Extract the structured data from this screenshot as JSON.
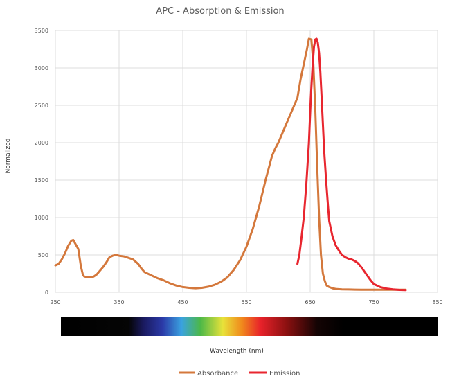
{
  "chart_data": {
    "type": "line",
    "title": "APC - Absorption & Emission",
    "xlabel": "Wavelength (nm)",
    "ylabel": "Normalized",
    "xlim": [
      250,
      850
    ],
    "ylim": [
      0,
      3500
    ],
    "x_ticks": [
      250,
      350,
      450,
      550,
      650,
      750,
      850
    ],
    "y_ticks": [
      0,
      500,
      1000,
      1500,
      2000,
      2500,
      3000,
      3500
    ],
    "grid": true,
    "legend_position": "bottom",
    "series": [
      {
        "name": "Absorbance",
        "color": "#d4783c",
        "x": [
          250,
          255,
          260,
          265,
          270,
          275,
          278,
          282,
          286,
          290,
          293,
          295,
          298,
          300,
          305,
          310,
          315,
          320,
          325,
          330,
          335,
          340,
          345,
          350,
          358,
          365,
          372,
          380,
          385,
          390,
          400,
          410,
          420,
          430,
          440,
          450,
          460,
          470,
          480,
          490,
          500,
          510,
          520,
          530,
          540,
          550,
          560,
          570,
          580,
          590,
          595,
          600,
          610,
          620,
          630,
          635,
          640,
          645,
          648,
          652,
          655,
          658,
          661,
          664,
          667,
          670,
          673,
          676,
          680,
          685,
          690,
          700,
          710,
          720,
          730,
          740,
          750,
          760,
          770,
          780,
          790,
          800
        ],
        "values": [
          360,
          380,
          440,
          520,
          620,
          690,
          700,
          640,
          580,
          350,
          240,
          215,
          205,
          200,
          200,
          210,
          240,
          290,
          340,
          400,
          470,
          490,
          500,
          490,
          480,
          460,
          440,
          380,
          320,
          270,
          230,
          190,
          160,
          120,
          90,
          70,
          60,
          55,
          60,
          75,
          100,
          140,
          200,
          300,
          430,
          610,
          850,
          1150,
          1500,
          1820,
          1920,
          2000,
          2200,
          2400,
          2600,
          2850,
          3050,
          3250,
          3390,
          3380,
          3050,
          2450,
          1700,
          1000,
          500,
          250,
          150,
          90,
          70,
          55,
          45,
          40,
          38,
          36,
          35,
          35,
          35,
          35,
          35,
          35,
          35,
          35
        ]
      },
      {
        "name": "Emission",
        "color": "#e8262f",
        "x": [
          630,
          633,
          636,
          640,
          644,
          648,
          651,
          654,
          656,
          658,
          660,
          662,
          664,
          666,
          668,
          670,
          672,
          675,
          678,
          680,
          685,
          690,
          695,
          700,
          705,
          710,
          715,
          720,
          725,
          730,
          735,
          740,
          745,
          750,
          760,
          770,
          780,
          790,
          800
        ],
        "values": [
          380,
          500,
          700,
          1000,
          1450,
          2000,
          2600,
          3050,
          3280,
          3380,
          3390,
          3340,
          3200,
          2950,
          2600,
          2250,
          1900,
          1500,
          1150,
          950,
          750,
          630,
          560,
          500,
          470,
          450,
          440,
          420,
          390,
          340,
          280,
          220,
          160,
          110,
          70,
          50,
          40,
          32,
          30
        ]
      }
    ],
    "spectrum_bar": {
      "stops": [
        {
          "offset": 0,
          "color": "#000000"
        },
        {
          "offset": 0.18,
          "color": "#050505"
        },
        {
          "offset": 0.22,
          "color": "#1a1a60"
        },
        {
          "offset": 0.27,
          "color": "#2b3aa8"
        },
        {
          "offset": 0.32,
          "color": "#3aa2e0"
        },
        {
          "offset": 0.37,
          "color": "#4cb848"
        },
        {
          "offset": 0.43,
          "color": "#e8e23a"
        },
        {
          "offset": 0.48,
          "color": "#f08a1c"
        },
        {
          "offset": 0.53,
          "color": "#e8222a"
        },
        {
          "offset": 0.6,
          "color": "#8a1010"
        },
        {
          "offset": 0.68,
          "color": "#140404"
        },
        {
          "offset": 0.75,
          "color": "#000000"
        },
        {
          "offset": 1,
          "color": "#000000"
        }
      ]
    }
  }
}
